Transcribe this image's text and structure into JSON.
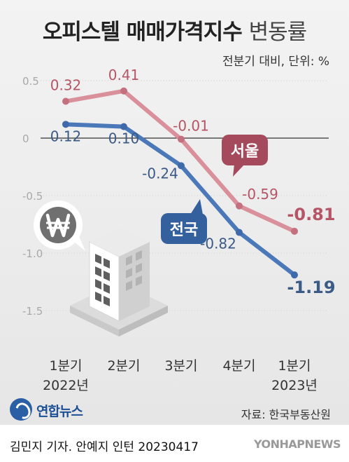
{
  "header": {
    "title_main": "오피스텔 매매가격지수",
    "title_sub": "변동률",
    "unit_note": "전분기 대비, 단위: %"
  },
  "chart_data": {
    "type": "line",
    "categories": [
      [
        "1분기",
        "2022년"
      ],
      [
        "2분기",
        ""
      ],
      [
        "3분기",
        ""
      ],
      [
        "4분기",
        ""
      ],
      [
        "1분기",
        "2023년"
      ]
    ],
    "series": [
      {
        "name": "서울",
        "values": [
          0.32,
          0.41,
          -0.01,
          -0.59,
          -0.81
        ]
      },
      {
        "name": "전국",
        "values": [
          0.12,
          0.1,
          -0.24,
          -0.82,
          -1.19
        ]
      }
    ],
    "value_labels": {
      "서울": [
        "0.32",
        "0.41",
        "-0.01",
        "-0.59",
        "-0.81"
      ],
      "전국": [
        "0.12",
        "0.10",
        "-0.24",
        "-0.82",
        "-1.19"
      ]
    },
    "y_ticks": [
      "0.5",
      "0",
      "-0.5",
      "-1.0",
      "-1.5"
    ],
    "y_tick_values": [
      0.5,
      0,
      -0.5,
      -1.0,
      -1.5
    ],
    "ylim": [
      -1.6,
      0.6
    ],
    "zero_line": true,
    "colors": {
      "서울": "#d9909a",
      "전국": "#4a78b8",
      "label_seoul": "#b55566",
      "label_national": "#3c5a86",
      "callout_seoul": "#a54a5c",
      "callout_national": "#35609e"
    }
  },
  "illustration": {
    "icon_names": [
      "won-currency-icon",
      "office-building-icon"
    ]
  },
  "footer": {
    "source": "자료: 한국부동산원",
    "logo_text": "연합뉴스",
    "credit": "김민지 기자. 안예지 인턴  20230417",
    "agency": "YONHAPNEWS"
  }
}
